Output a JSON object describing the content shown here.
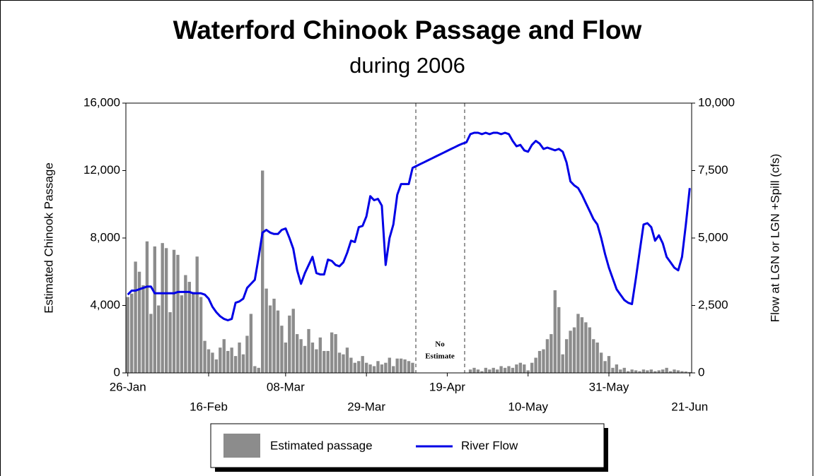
{
  "chart_data": {
    "type": "bar_line",
    "title": "Waterford Chinook Passage and Flow",
    "subtitle": "during 2006",
    "y_label": "Estimated Chinook Passage",
    "y2_label": "Flow at LGN or LGN +Spill (cfs)",
    "annotations": [
      "No",
      "Estimate"
    ],
    "categories": [
      "26-Jan",
      null,
      null,
      null,
      null,
      null,
      null,
      null,
      null,
      null,
      null,
      null,
      null,
      null,
      null,
      null,
      null,
      null,
      null,
      null,
      null,
      "16-Feb",
      null,
      null,
      null,
      null,
      null,
      null,
      null,
      null,
      null,
      null,
      null,
      null,
      null,
      null,
      null,
      null,
      null,
      null,
      null,
      "08-Mar",
      null,
      null,
      null,
      null,
      null,
      null,
      null,
      null,
      null,
      null,
      null,
      null,
      null,
      null,
      null,
      null,
      null,
      null,
      null,
      null,
      "29-Mar",
      null,
      null,
      null,
      null,
      null,
      null,
      null,
      null,
      null,
      null,
      null,
      null,
      null,
      null,
      null,
      null,
      null,
      null,
      null,
      null,
      "19-Apr",
      null,
      null,
      null,
      null,
      null,
      null,
      null,
      null,
      null,
      null,
      null,
      null,
      null,
      null,
      null,
      null,
      null,
      null,
      null,
      null,
      "10-May",
      null,
      null,
      null,
      null,
      null,
      null,
      null,
      null,
      null,
      null,
      null,
      null,
      null,
      null,
      null,
      null,
      null,
      null,
      null,
      null,
      "31-May",
      null,
      null,
      null,
      null,
      null,
      null,
      null,
      null,
      null,
      null,
      null,
      null,
      null,
      null,
      null,
      null,
      null,
      null,
      null,
      null,
      "21-Jun"
    ],
    "series": [
      {
        "name": "Estimated passage",
        "color": "#8c8c8c",
        "kind": "bar",
        "values": [
          4500,
          4700,
          6600,
          6000,
          5200,
          7800,
          3500,
          7500,
          4000,
          7700,
          7400,
          3600,
          7300,
          7000,
          4600,
          5800,
          5400,
          4800,
          6900,
          4500,
          1900,
          1400,
          1200,
          800,
          1500,
          2000,
          1300,
          1500,
          1000,
          1800,
          1100,
          2200,
          3500,
          400,
          300,
          12000,
          5000,
          4000,
          4400,
          3700,
          2800,
          1800,
          3400,
          3800,
          2300,
          2000,
          1600,
          2600,
          1800,
          1400,
          2100,
          1300,
          1300,
          2400,
          2300,
          1200,
          1100,
          1500,
          900,
          600,
          700,
          1000,
          600,
          500,
          400,
          700,
          500,
          600,
          900,
          400,
          850,
          850,
          800,
          700,
          600,
          null,
          null,
          null,
          null,
          null,
          null,
          null,
          null,
          null,
          null,
          null,
          null,
          null,
          null,
          200,
          300,
          200,
          100,
          300,
          200,
          300,
          200,
          400,
          300,
          400,
          300,
          500,
          600,
          500,
          150,
          600,
          900,
          1300,
          1400,
          2000,
          2300,
          4900,
          3900,
          1100,
          2000,
          2500,
          2700,
          3500,
          3300,
          3000,
          2700,
          2000,
          1800,
          1200,
          700,
          1000,
          300,
          500,
          200,
          300,
          100,
          200,
          150,
          100,
          200,
          150,
          200,
          100,
          150,
          200,
          300,
          100,
          200,
          150,
          100,
          80,
          50
        ]
      },
      {
        "name": "River Flow",
        "color": "#0000e6",
        "kind": "line",
        "axis": "y2",
        "values": [
          2900,
          3050,
          3050,
          3100,
          3150,
          3200,
          3200,
          2950,
          2950,
          2950,
          2950,
          2950,
          2950,
          3000,
          3000,
          3000,
          3000,
          2950,
          2950,
          2950,
          2900,
          2750,
          2450,
          2250,
          2100,
          2000,
          1950,
          2000,
          2600,
          2650,
          2750,
          3150,
          3300,
          3450,
          4300,
          5200,
          5300,
          5200,
          5150,
          5150,
          5300,
          5350,
          5000,
          4600,
          3800,
          3300,
          3700,
          4000,
          4300,
          3700,
          3650,
          3650,
          4200,
          4150,
          4000,
          3950,
          4100,
          4450,
          4900,
          4850,
          5400,
          5450,
          5800,
          6550,
          6400,
          6450,
          6200,
          4000,
          5000,
          5500,
          6600,
          7000,
          7000,
          7000,
          7600,
          7670,
          7740,
          7810,
          7880,
          7950,
          8020,
          8090,
          8160,
          8230,
          8300,
          8370,
          8440,
          8500,
          8550,
          8850,
          8900,
          8900,
          8850,
          8900,
          8850,
          8900,
          8900,
          8850,
          8900,
          8850,
          8600,
          8400,
          8450,
          8250,
          8200,
          8450,
          8600,
          8500,
          8300,
          8350,
          8300,
          8250,
          8300,
          8200,
          7800,
          7100,
          6950,
          6850,
          6600,
          6300,
          6000,
          5700,
          5500,
          5000,
          4400,
          3900,
          3500,
          3100,
          2900,
          2700,
          2600,
          2550,
          3500,
          4500,
          5500,
          5550,
          5400,
          4900,
          5100,
          4800,
          4300,
          4100,
          3900,
          3800,
          4300,
          5500,
          6850
        ]
      }
    ],
    "ylim": [
      0,
      16000
    ],
    "yticks": [
      0,
      {
        "value": 4000,
        "label": "4,000"
      },
      {
        "value": 8000,
        "label": "8,000"
      },
      {
        "value": 12000,
        "label": "12,000"
      },
      {
        "value": 16000,
        "label": "16,000"
      }
    ],
    "y2lim": [
      0,
      10000
    ],
    "y2ticks": [
      0,
      {
        "value": 2500,
        "label": "2,500"
      },
      {
        "value": 5000,
        "label": "5,000"
      },
      {
        "value": 7500,
        "label": "7,500"
      },
      {
        "value": 10000,
        "label": "10,000"
      }
    ]
  }
}
